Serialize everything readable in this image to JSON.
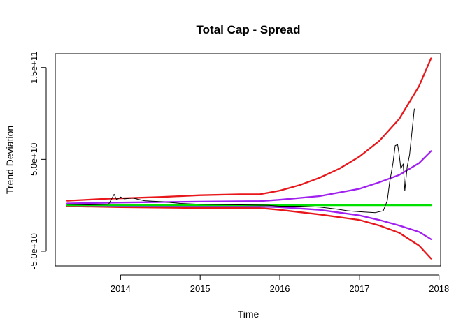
{
  "chart_data": {
    "type": "line",
    "title": "Total Cap - Spread",
    "xlabel": "Time",
    "ylabel": "Trend Deviation",
    "xlim": [
      2013.18,
      2018.02
    ],
    "ylim": [
      -66000000000.0,
      165000000000.0
    ],
    "x_ticks": [
      2014,
      2015,
      2016,
      2017,
      2018
    ],
    "x_tick_labels": [
      "2014",
      "2015",
      "2016",
      "2017",
      "2018"
    ],
    "y_ticks": [
      -50000000000.0,
      50000000000.0,
      150000000000.0
    ],
    "y_tick_labels": [
      "-5.0e+10",
      "5.0e+10",
      "1.5e+11"
    ],
    "grid": false,
    "series": [
      {
        "key": "upper_outer",
        "color": "#E8171B",
        "width": 2.3,
        "points": [
          [
            2013.33,
            5000000000.0
          ],
          [
            2013.8,
            7000000000.0
          ],
          [
            2014.5,
            9000000000.0
          ],
          [
            2015,
            11000000000.0
          ],
          [
            2015.5,
            12000000000.0
          ],
          [
            2015.75,
            12000000000.0
          ],
          [
            2016,
            16000000000.0
          ],
          [
            2016.25,
            22000000000.0
          ],
          [
            2016.5,
            30000000000.0
          ],
          [
            2016.75,
            40000000000.0
          ],
          [
            2017,
            53000000000.0
          ],
          [
            2017.25,
            70000000000.0
          ],
          [
            2017.5,
            94000000000.0
          ],
          [
            2017.75,
            130000000000.0
          ],
          [
            2017.9,
            160000000000.0
          ]
        ]
      },
      {
        "key": "lower_outer",
        "color": "#E8171B",
        "width": 2.3,
        "points": [
          [
            2013.33,
            -1000000000.0
          ],
          [
            2014,
            -2000000000.0
          ],
          [
            2015,
            -3000000000.0
          ],
          [
            2015.75,
            -3000000000.0
          ],
          [
            2016,
            -5000000000.0
          ],
          [
            2016.5,
            -10000000000.0
          ],
          [
            2017,
            -16000000000.0
          ],
          [
            2017.25,
            -22000000000.0
          ],
          [
            2017.5,
            -30000000000.0
          ],
          [
            2017.75,
            -44000000000.0
          ],
          [
            2017.9,
            -58000000000.0
          ]
        ]
      },
      {
        "key": "upper_inner",
        "color": "#A020F0",
        "width": 2.3,
        "points": [
          [
            2013.33,
            2000000000.0
          ],
          [
            2014,
            3000000000.0
          ],
          [
            2015,
            4000000000.0
          ],
          [
            2015.75,
            4500000000.0
          ],
          [
            2016,
            6000000000.0
          ],
          [
            2016.5,
            10000000000.0
          ],
          [
            2017,
            18000000000.0
          ],
          [
            2017.25,
            25000000000.0
          ],
          [
            2017.5,
            33000000000.0
          ],
          [
            2017.75,
            46000000000.0
          ],
          [
            2017.9,
            59000000000.0
          ]
        ]
      },
      {
        "key": "lower_inner",
        "color": "#A020F0",
        "width": 2.3,
        "points": [
          [
            2013.33,
            0
          ],
          [
            2014,
            -500000000.0
          ],
          [
            2015,
            -1000000000.0
          ],
          [
            2015.75,
            -1500000000.0
          ],
          [
            2016,
            -2000000000.0
          ],
          [
            2016.5,
            -5000000000.0
          ],
          [
            2017,
            -11000000000.0
          ],
          [
            2017.25,
            -16000000000.0
          ],
          [
            2017.5,
            -22000000000.0
          ],
          [
            2017.75,
            -29000000000.0
          ],
          [
            2017.9,
            -37000000000.0
          ]
        ]
      },
      {
        "key": "zero_line",
        "color": "#00E000",
        "width": 2.3,
        "points": [
          [
            2013.33,
            0
          ],
          [
            2017.9,
            0
          ]
        ]
      },
      {
        "key": "observed",
        "color": "#000000",
        "width": 1,
        "points": [
          [
            2013.33,
            1000000000.0
          ],
          [
            2013.6,
            500000000.0
          ],
          [
            2013.85,
            1000000000.0
          ],
          [
            2013.92,
            12000000000.0
          ],
          [
            2013.95,
            6000000000.0
          ],
          [
            2014.0,
            9000000000.0
          ],
          [
            2014.05,
            7000000000.0
          ],
          [
            2014.15,
            8000000000.0
          ],
          [
            2014.3,
            5000000000.0
          ],
          [
            2014.5,
            4000000000.0
          ],
          [
            2014.75,
            2000000000.0
          ],
          [
            2015.0,
            1000000000.0
          ],
          [
            2015.5,
            500000000.0
          ],
          [
            2015.85,
            0
          ],
          [
            2016.0,
            -1000000000.0
          ],
          [
            2016.25,
            -1000000000.0
          ],
          [
            2016.5,
            -2000000000.0
          ],
          [
            2016.7,
            -4000000000.0
          ],
          [
            2016.85,
            -6000000000.0
          ],
          [
            2017.0,
            -7000000000.0
          ],
          [
            2017.2,
            -8000000000.0
          ],
          [
            2017.3,
            -6000000000.0
          ],
          [
            2017.35,
            5000000000.0
          ],
          [
            2017.38,
            25000000000.0
          ],
          [
            2017.42,
            45000000000.0
          ],
          [
            2017.45,
            65000000000.0
          ],
          [
            2017.48,
            66000000000.0
          ],
          [
            2017.5,
            55000000000.0
          ],
          [
            2017.52,
            40000000000.0
          ],
          [
            2017.55,
            45000000000.0
          ],
          [
            2017.57,
            16000000000.0
          ],
          [
            2017.6,
            42000000000.0
          ],
          [
            2017.63,
            55000000000.0
          ],
          [
            2017.66,
            80000000000.0
          ],
          [
            2017.69,
            105000000000.0
          ]
        ]
      }
    ]
  }
}
